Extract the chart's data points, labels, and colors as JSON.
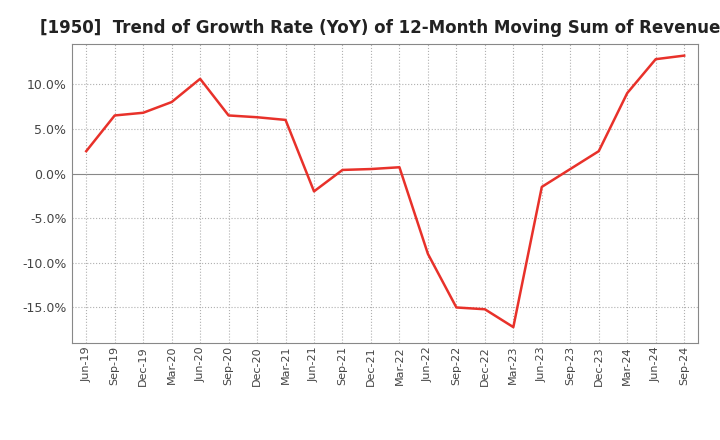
{
  "title": "[1950]  Trend of Growth Rate (YoY) of 12-Month Moving Sum of Revenues",
  "title_fontsize": 12,
  "line_color": "#e8312a",
  "background_color": "#ffffff",
  "grid_color": "#b0b0b0",
  "ylim": [
    -0.19,
    0.145
  ],
  "yticks": [
    -0.15,
    -0.1,
    -0.05,
    0.0,
    0.05,
    0.1
  ],
  "x_labels": [
    "Jun-19",
    "Sep-19",
    "Dec-19",
    "Mar-20",
    "Jun-20",
    "Sep-20",
    "Dec-20",
    "Mar-21",
    "Jun-21",
    "Sep-21",
    "Dec-21",
    "Mar-22",
    "Jun-22",
    "Sep-22",
    "Dec-22",
    "Mar-23",
    "Jun-23",
    "Sep-23",
    "Dec-23",
    "Mar-24",
    "Jun-24",
    "Sep-24"
  ],
  "values": [
    0.025,
    0.065,
    0.068,
    0.08,
    0.106,
    0.065,
    0.063,
    0.06,
    -0.02,
    0.004,
    0.005,
    0.007,
    -0.09,
    -0.15,
    -0.152,
    -0.172,
    -0.015,
    0.005,
    0.025,
    0.09,
    0.128,
    0.132
  ]
}
